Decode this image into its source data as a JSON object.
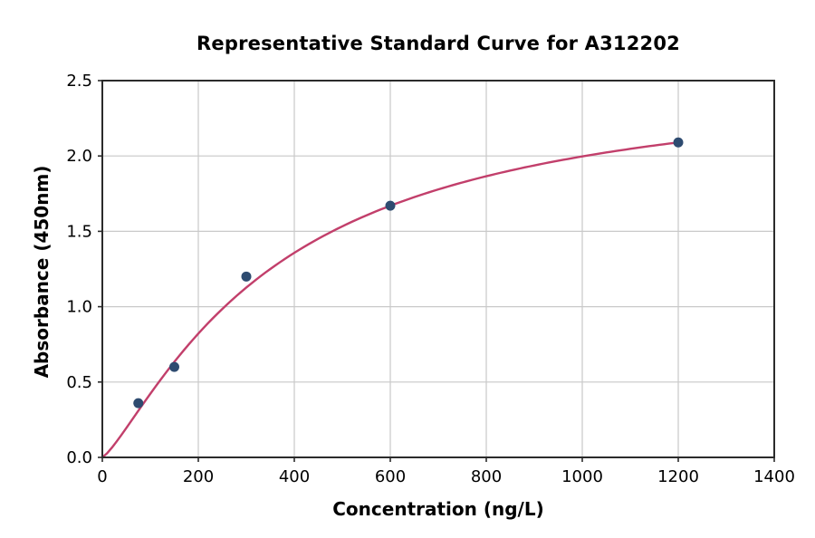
{
  "chart_data": {
    "type": "scatter",
    "title": "Representative Standard Curve for A312202",
    "xlabel": "Concentration (ng/L)",
    "ylabel": "Absorbance (450nm)",
    "xlim": [
      0,
      1400
    ],
    "ylim": [
      0,
      2.5
    ],
    "xticks": [
      0,
      200,
      400,
      600,
      800,
      1000,
      1200,
      1400
    ],
    "xtick_labels": [
      "0",
      "200",
      "400",
      "600",
      "800",
      "1000",
      "1200",
      "1400"
    ],
    "yticks": [
      0,
      0.5,
      1.0,
      1.5,
      2.0,
      2.5
    ],
    "ytick_labels": [
      "0.0",
      "0.5",
      "1.0",
      "1.5",
      "2.0",
      "2.5"
    ],
    "grid": true,
    "legend": "none",
    "points": {
      "x": [
        75,
        150,
        300,
        600,
        1200
      ],
      "y": [
        0.36,
        0.6,
        1.2,
        1.67,
        2.09
      ]
    },
    "fit_curve": {
      "model": "4PL",
      "a": 0.0,
      "b": 1.26,
      "c": 361,
      "d": 2.55,
      "x_min": 0,
      "x_max": 1200
    },
    "style": {
      "marker_color": "#2e4b70",
      "curve_color": "#c23f6b",
      "grid_color": "#c9c9c9",
      "spine_color": "#2b2b2b",
      "text_color": "#000000",
      "background": "#ffffff",
      "marker_radius": 5.5,
      "curve_width": 2.4,
      "spine_width": 2,
      "grid_width": 1.2,
      "tick_length": 5
    }
  }
}
